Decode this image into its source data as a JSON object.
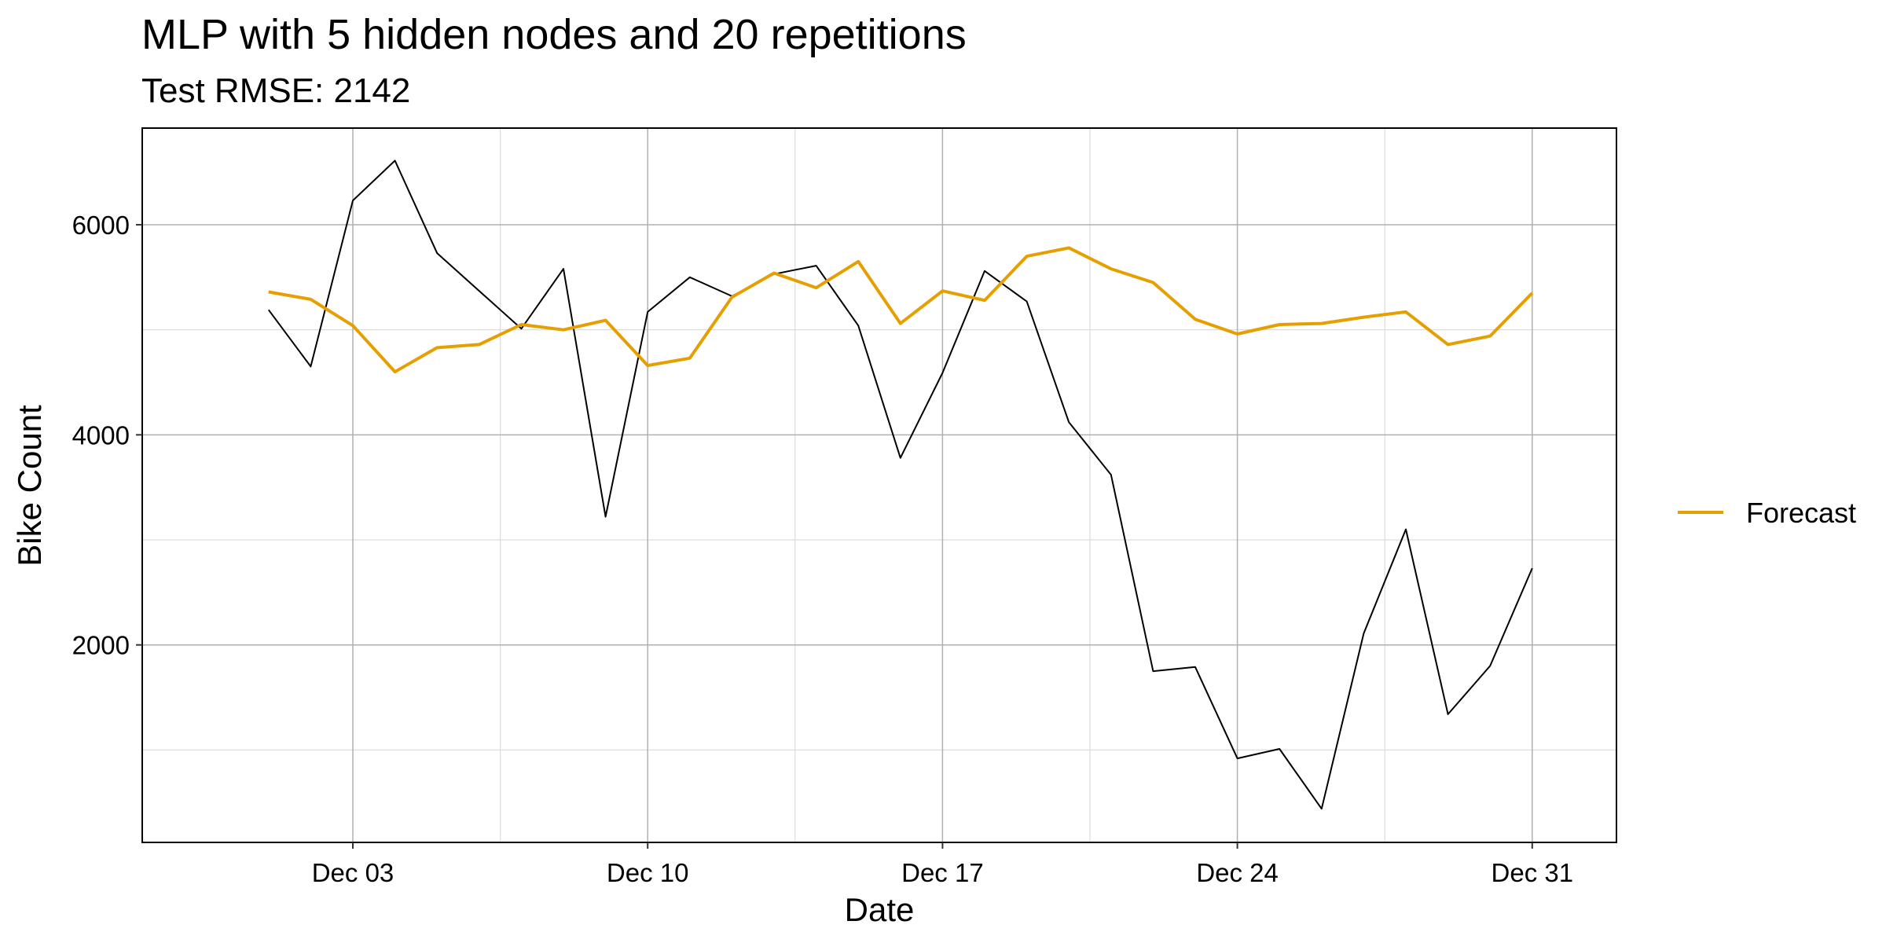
{
  "chart_data": {
    "type": "line",
    "title": "MLP with 5 hidden nodes and 20 repetitions",
    "subtitle": "Test RMSE: 2142",
    "xlabel": "Date",
    "ylabel": "Bike Count",
    "x": [
      "2012-12-01",
      "2012-12-02",
      "2012-12-03",
      "2012-12-04",
      "2012-12-05",
      "2012-12-06",
      "2012-12-07",
      "2012-12-08",
      "2012-12-09",
      "2012-12-10",
      "2012-12-11",
      "2012-12-12",
      "2012-12-13",
      "2012-12-14",
      "2012-12-15",
      "2012-12-16",
      "2012-12-17",
      "2012-12-18",
      "2012-12-19",
      "2012-12-20",
      "2012-12-21",
      "2012-12-22",
      "2012-12-23",
      "2012-12-24",
      "2012-12-25",
      "2012-12-26",
      "2012-12-27",
      "2012-12-28",
      "2012-12-29",
      "2012-12-30",
      "2012-12-31"
    ],
    "x_ticks": [
      {
        "date": "2012-12-03",
        "label": "Dec 03"
      },
      {
        "date": "2012-12-10",
        "label": "Dec 10"
      },
      {
        "date": "2012-12-17",
        "label": "Dec 17"
      },
      {
        "date": "2012-12-24",
        "label": "Dec 24"
      },
      {
        "date": "2012-12-31",
        "label": "Dec 31"
      }
    ],
    "y_ticks": [
      2000,
      4000,
      6000
    ],
    "y_minor_gridlines": [
      1000,
      3000,
      5000
    ],
    "ylim": [
      120,
      6920
    ],
    "grid": true,
    "legend_position": "right",
    "series": [
      {
        "key": "actual",
        "color": "#000000",
        "values": [
          5190,
          4650,
          6230,
          6610,
          5730,
          5370,
          5010,
          5580,
          3220,
          5170,
          5500,
          5320,
          5530,
          5610,
          5040,
          3780,
          4590,
          5560,
          5270,
          4120,
          3620,
          1750,
          1790,
          920,
          1010,
          440,
          2110,
          3100,
          1340,
          1800,
          2730
        ]
      },
      {
        "key": "forecast",
        "name": "Forecast",
        "color": "#E69F00",
        "values": [
          5360,
          5290,
          5040,
          4600,
          4830,
          4860,
          5050,
          5000,
          5090,
          4660,
          4730,
          5310,
          5540,
          5400,
          5650,
          5060,
          5370,
          5280,
          5700,
          5780,
          5580,
          5450,
          5100,
          4960,
          5050,
          5060,
          5120,
          5170,
          4860,
          4940,
          5350
        ]
      }
    ]
  }
}
